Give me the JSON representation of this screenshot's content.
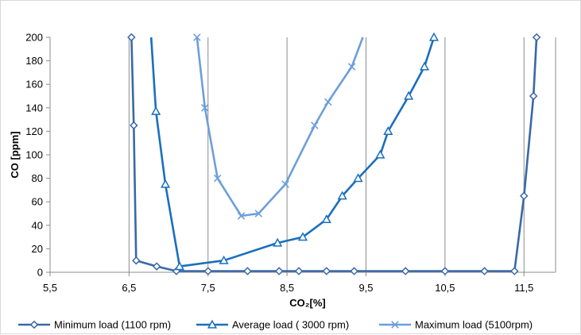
{
  "chart_data": {
    "type": "line",
    "xlabel": "CO₂[%]",
    "ylabel": "CO [ppm]",
    "xlim": [
      5.5,
      11.9
    ],
    "ylim": [
      0,
      200
    ],
    "x_ticks": [
      5.5,
      6.5,
      7.5,
      8.5,
      9.5,
      10.5,
      11.5
    ],
    "x_tick_labels": [
      "5,5",
      "6,5",
      "7,5",
      "8,5",
      "9,5",
      "10,5",
      "11,5"
    ],
    "y_ticks": [
      0,
      20,
      40,
      60,
      80,
      100,
      120,
      140,
      160,
      180,
      200
    ],
    "y_tick_labels": [
      "0",
      "20",
      "40",
      "60",
      "80",
      "100",
      "120",
      "140",
      "160",
      "180",
      "200"
    ],
    "grid": "vertical",
    "legend_position": "bottom",
    "series": [
      {
        "name": "Minimum load (1100 rpm)",
        "color": "#3a68a8",
        "marker": "diamond",
        "points": [
          [
            6.53,
            200
          ],
          [
            6.56,
            125
          ],
          [
            6.59,
            10
          ],
          [
            6.85,
            5
          ],
          [
            7.1,
            1
          ],
          [
            7.5,
            1
          ],
          [
            8.0,
            1
          ],
          [
            8.4,
            1
          ],
          [
            8.65,
            1
          ],
          [
            9.0,
            1
          ],
          [
            9.35,
            1
          ],
          [
            10.0,
            1
          ],
          [
            10.5,
            1
          ],
          [
            11.0,
            1
          ],
          [
            11.38,
            1
          ],
          [
            11.5,
            65
          ],
          [
            11.62,
            150
          ],
          [
            11.66,
            200
          ]
        ]
      },
      {
        "name": "Average load ( 3000 rpm)",
        "color": "#1a6fbd",
        "marker": "triangle",
        "points": [
          [
            6.78,
            200
          ],
          [
            6.84,
            137
          ],
          [
            6.96,
            75
          ],
          [
            7.14,
            5
          ],
          [
            7.7,
            10
          ],
          [
            8.38,
            25
          ],
          [
            8.7,
            30
          ],
          [
            9.0,
            45
          ],
          [
            9.2,
            65
          ],
          [
            9.4,
            80
          ],
          [
            9.68,
            100
          ],
          [
            9.78,
            120
          ],
          [
            10.04,
            150
          ],
          [
            10.24,
            175
          ],
          [
            10.36,
            200
          ]
        ],
        "marker_points": [
          [
            6.84,
            137
          ],
          [
            6.96,
            75
          ],
          [
            7.14,
            5
          ],
          [
            7.7,
            10
          ],
          [
            8.38,
            25
          ],
          [
            8.7,
            30
          ],
          [
            9.0,
            45
          ],
          [
            9.2,
            65
          ],
          [
            9.4,
            80
          ],
          [
            9.68,
            100
          ],
          [
            9.78,
            120
          ],
          [
            10.04,
            150
          ],
          [
            10.24,
            175
          ],
          [
            10.36,
            200
          ]
        ]
      },
      {
        "name": "Maximum load (5100rpm)",
        "color": "#6d9fd9",
        "marker": "x",
        "points": [
          [
            7.36,
            200
          ],
          [
            7.46,
            140
          ],
          [
            7.62,
            80
          ],
          [
            7.92,
            48
          ],
          [
            8.14,
            50
          ],
          [
            8.48,
            75
          ],
          [
            8.85,
            125
          ],
          [
            9.02,
            145
          ],
          [
            9.32,
            175
          ],
          [
            9.46,
            200
          ]
        ],
        "marker_points": [
          [
            7.36,
            200
          ],
          [
            7.46,
            140
          ],
          [
            7.62,
            80
          ],
          [
            7.92,
            48
          ],
          [
            8.14,
            50
          ],
          [
            8.48,
            75
          ],
          [
            8.85,
            125
          ],
          [
            9.02,
            145
          ],
          [
            9.32,
            175
          ]
        ]
      }
    ]
  }
}
